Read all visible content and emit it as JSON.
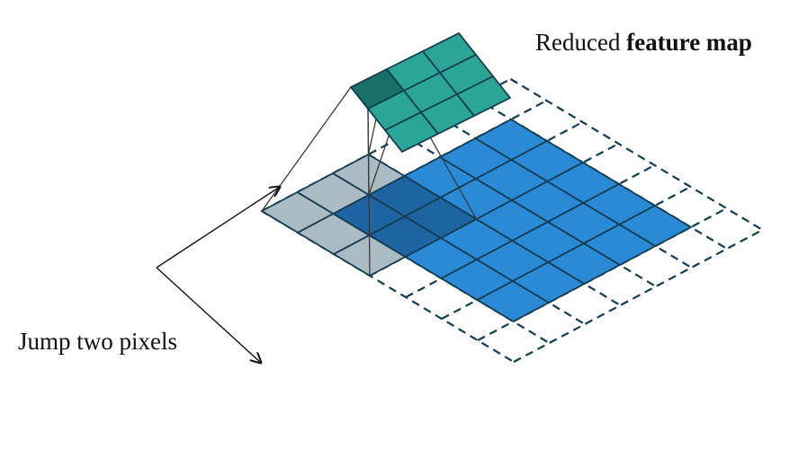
{
  "labels": {
    "title_prefix": "Reduced",
    "title_bold": "feature map",
    "jump": "Jump two pixels"
  },
  "grids": {
    "output": {
      "rows": 3,
      "cols": 3,
      "highlighted_cell": [
        0,
        0
      ]
    },
    "input": {
      "rows": 5,
      "cols": 5,
      "padding": 1,
      "kernel_size": 3,
      "stride": 2
    }
  },
  "colors": {
    "output_fill": "#2aa596",
    "output_highlight": "#176f66",
    "input_fill": "#2b8ad6",
    "kernel_fill": "#aabbc4",
    "kernel_overlap_fill": "#1e62a0",
    "grid_stroke": "#123c4f",
    "padding_stroke": "#123c4f",
    "projection_stroke": "#3a3a3a",
    "arrow_stroke": "#111111"
  }
}
